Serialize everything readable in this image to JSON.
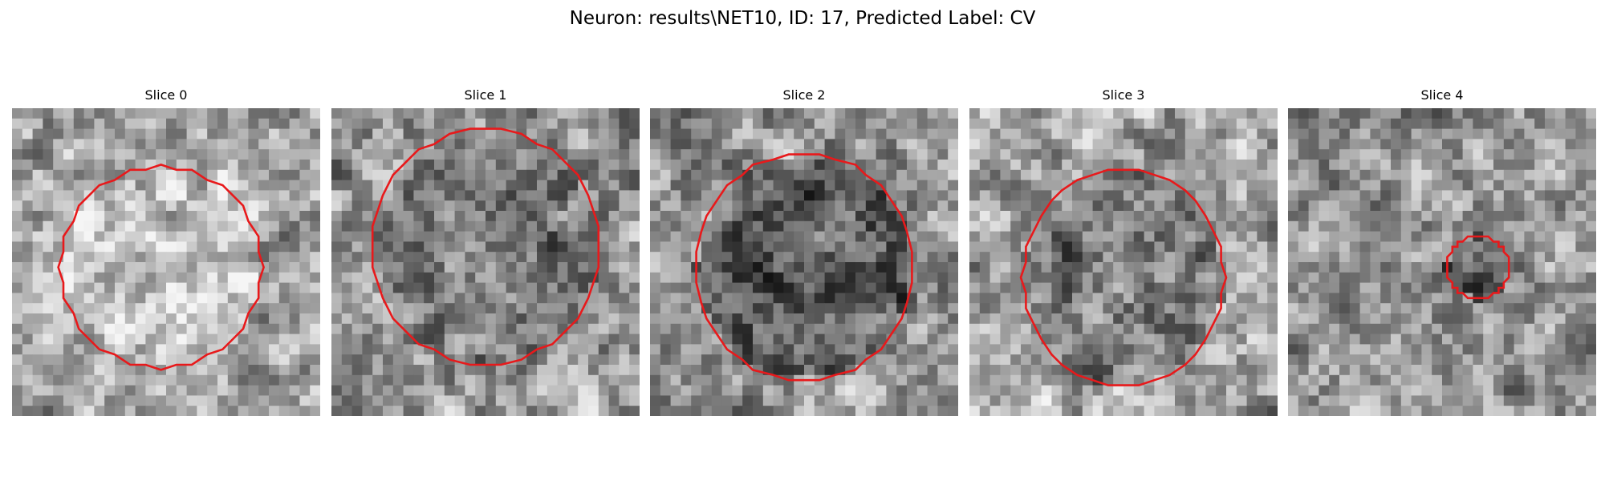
{
  "figure": {
    "title": "Neuron: results\\NET10, ID: 17, Predicted Label: CV",
    "colormap": "grayscale",
    "contour_color": "#e8191b",
    "panels": [
      {
        "label": "Slice 0",
        "seed": 11,
        "region_tone": "lighter",
        "contour": "large"
      },
      {
        "label": "Slice 1",
        "seed": 23,
        "region_tone": "mid-gray",
        "contour": "large"
      },
      {
        "label": "Slice 2",
        "seed": 37,
        "region_tone": "darker",
        "contour": "large"
      },
      {
        "label": "Slice 3",
        "seed": 41,
        "region_tone": "mid-gray",
        "contour": "medium"
      },
      {
        "label": "Slice 4",
        "seed": 53,
        "region_tone": "darker",
        "contour": "small"
      }
    ]
  }
}
